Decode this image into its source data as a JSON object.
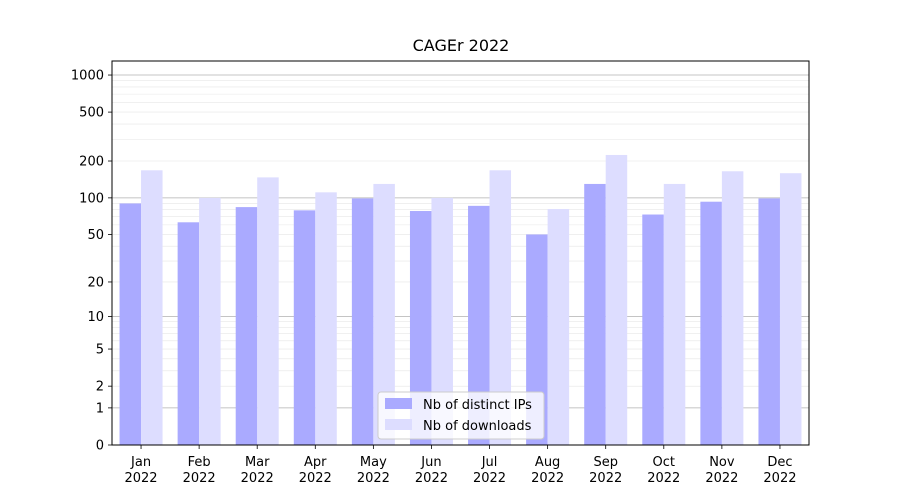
{
  "chart_data": {
    "type": "bar",
    "title": "CAGEr 2022",
    "xlabel": "",
    "ylabel": "",
    "yscale": "log(1+y)",
    "categories": [
      [
        "Jan",
        "2022"
      ],
      [
        "Feb",
        "2022"
      ],
      [
        "Mar",
        "2022"
      ],
      [
        "Apr",
        "2022"
      ],
      [
        "May",
        "2022"
      ],
      [
        "Jun",
        "2022"
      ],
      [
        "Jul",
        "2022"
      ],
      [
        "Aug",
        "2022"
      ],
      [
        "Sep",
        "2022"
      ],
      [
        "Oct",
        "2022"
      ],
      [
        "Nov",
        "2022"
      ],
      [
        "Dec",
        "2022"
      ]
    ],
    "series": [
      {
        "name": "Nb of distinct IPs",
        "color": "#aaaaff",
        "values": [
          90,
          63,
          84,
          79,
          99,
          78,
          86,
          50,
          130,
          73,
          93,
          99
        ]
      },
      {
        "name": "Nb of downloads",
        "color": "#ddddff",
        "values": [
          168,
          100,
          147,
          111,
          130,
          100,
          168,
          81,
          224,
          130,
          165,
          159
        ]
      }
    ],
    "yticks": [
      0,
      1,
      2,
      5,
      10,
      20,
      50,
      100,
      200,
      500,
      1000
    ],
    "ylim": [
      0,
      1300
    ],
    "grid": true,
    "legend_position": "lower center"
  }
}
